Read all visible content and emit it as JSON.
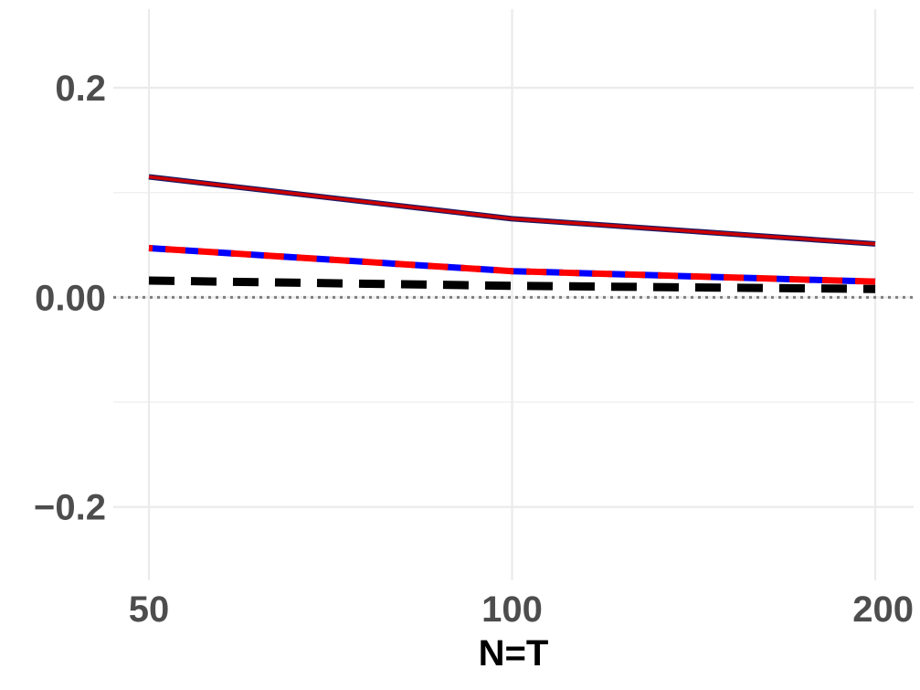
{
  "chart_data": {
    "type": "line",
    "xlabel": "N=T",
    "ylabel": "",
    "x": [
      50,
      100,
      200
    ],
    "x_tick_labels": [
      "50",
      "100",
      "200"
    ],
    "y_tick_values": [
      -0.2,
      0,
      0.2
    ],
    "y_tick_labels": [
      "−0.2",
      "0.00",
      "0.2"
    ],
    "ylim": [
      -0.27,
      0.275
    ],
    "grid": true,
    "reference_line": {
      "y": 0,
      "style": "dotted",
      "color": "#7f7f7f"
    },
    "series": [
      {
        "values": [
          0.115,
          0.075,
          0.051
        ],
        "color": "#cc0000",
        "underlay_color": "#1a1a66",
        "style": "solid"
      },
      {
        "values": [
          0.047,
          0.025,
          0.015
        ],
        "color": "#0000ff",
        "style": "dashed"
      },
      {
        "values": [
          0.047,
          0.025,
          0.015
        ],
        "color": "#ff0000",
        "style": "dashed-offset"
      },
      {
        "values": [
          0.016,
          0.011,
          0.008
        ],
        "color": "#000000",
        "style": "dashed"
      }
    ]
  }
}
